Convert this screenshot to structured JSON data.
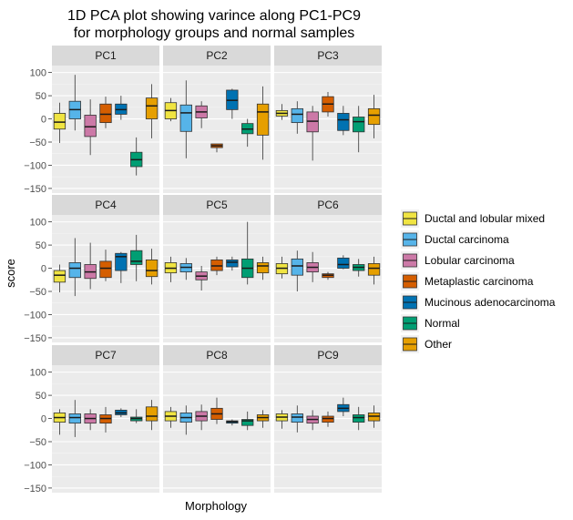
{
  "chart_data": {
    "type": "box",
    "title_lines": [
      "1D PCA plot showing varince along PC1-PC9",
      "for morphology groups and normal samples"
    ],
    "xlabel": "Morphology",
    "ylabel": "score",
    "ylim": [
      -160,
      115
    ],
    "yticks": [
      -150,
      -100,
      -50,
      0,
      50,
      100
    ],
    "grid": true,
    "legend_position": "right",
    "groups": [
      {
        "name": "Ductal and lobular mixed",
        "color": "#F0E442"
      },
      {
        "name": "Ductal carcinoma",
        "color": "#56B4E9"
      },
      {
        "name": "Lobular carcinoma",
        "color": "#CC79A7"
      },
      {
        "name": "Metaplastic carcinoma",
        "color": "#D55E00"
      },
      {
        "name": "Mucinous adenocarcinoma",
        "color": "#0072B2"
      },
      {
        "name": "Normal",
        "color": "#009E73"
      },
      {
        "name": "Other",
        "color": "#E69F00"
      }
    ],
    "panels": [
      {
        "label": "PC1",
        "boxes": [
          {
            "min": -52,
            "q1": -22,
            "median": -7,
            "q3": 12,
            "max": 35
          },
          {
            "min": -25,
            "q1": 0,
            "median": 20,
            "q3": 38,
            "max": 95
          },
          {
            "min": -78,
            "q1": -38,
            "median": -17,
            "q3": 8,
            "max": 42
          },
          {
            "min": -20,
            "q1": -8,
            "median": 10,
            "q3": 32,
            "max": 48
          },
          {
            "min": -2,
            "q1": 10,
            "median": 20,
            "q3": 32,
            "max": 50
          },
          {
            "min": -122,
            "q1": -103,
            "median": -88,
            "q3": -72,
            "max": -40
          },
          {
            "min": -42,
            "q1": 0,
            "median": 28,
            "q3": 45,
            "max": 75
          }
        ]
      },
      {
        "label": "PC2",
        "boxes": [
          {
            "min": -5,
            "q1": 0,
            "median": 18,
            "q3": 35,
            "max": 45
          },
          {
            "min": -85,
            "q1": -27,
            "median": 13,
            "q3": 30,
            "max": 83
          },
          {
            "min": -20,
            "q1": 2,
            "median": 15,
            "q3": 28,
            "max": 38
          },
          {
            "min": -72,
            "q1": -62,
            "median": -58,
            "q3": -54,
            "max": -54
          },
          {
            "min": 0,
            "q1": 20,
            "median": 40,
            "q3": 62,
            "max": 65
          },
          {
            "min": -60,
            "q1": -32,
            "median": -22,
            "q3": -10,
            "max": 0
          },
          {
            "min": -88,
            "q1": -35,
            "median": 15,
            "q3": 32,
            "max": 70
          }
        ]
      },
      {
        "label": "PC3",
        "boxes": [
          {
            "min": -2,
            "q1": 6,
            "median": 12,
            "q3": 18,
            "max": 32
          },
          {
            "min": -32,
            "q1": -8,
            "median": 10,
            "q3": 22,
            "max": 38
          },
          {
            "min": -90,
            "q1": -28,
            "median": -5,
            "q3": 15,
            "max": 28
          },
          {
            "min": 5,
            "q1": 15,
            "median": 32,
            "q3": 48,
            "max": 58
          },
          {
            "min": -35,
            "q1": -25,
            "median": -2,
            "q3": 12,
            "max": 28
          },
          {
            "min": -72,
            "q1": -28,
            "median": -6,
            "q3": 4,
            "max": 28
          },
          {
            "min": -42,
            "q1": -12,
            "median": 8,
            "q3": 22,
            "max": 52
          }
        ]
      },
      {
        "label": "PC4",
        "boxes": [
          {
            "min": -52,
            "q1": -30,
            "median": -15,
            "q3": -5,
            "max": 8
          },
          {
            "min": -60,
            "q1": -20,
            "median": 0,
            "q3": 12,
            "max": 65
          },
          {
            "min": -45,
            "q1": -22,
            "median": -8,
            "q3": 8,
            "max": 55
          },
          {
            "min": -28,
            "q1": -20,
            "median": 0,
            "q3": 15,
            "max": 40
          },
          {
            "min": -32,
            "q1": -5,
            "median": 25,
            "q3": 32,
            "max": 35
          },
          {
            "min": -28,
            "q1": 8,
            "median": 15,
            "q3": 38,
            "max": 72
          },
          {
            "min": -35,
            "q1": -18,
            "median": -5,
            "q3": 18,
            "max": 42
          }
        ]
      },
      {
        "label": "PC5",
        "boxes": [
          {
            "min": -30,
            "q1": -10,
            "median": 0,
            "q3": 12,
            "max": 25
          },
          {
            "min": -25,
            "q1": -8,
            "median": 2,
            "q3": 10,
            "max": 22
          },
          {
            "min": -48,
            "q1": -25,
            "median": -17,
            "q3": -8,
            "max": 5
          },
          {
            "min": -15,
            "q1": -5,
            "median": 5,
            "q3": 18,
            "max": 25
          },
          {
            "min": -5,
            "q1": 3,
            "median": 13,
            "q3": 18,
            "max": 25
          },
          {
            "min": -35,
            "q1": -20,
            "median": 0,
            "q3": 20,
            "max": 100
          },
          {
            "min": -25,
            "q1": -10,
            "median": 5,
            "q3": 12,
            "max": 25
          }
        ]
      },
      {
        "label": "PC6",
        "boxes": [
          {
            "min": -22,
            "q1": -12,
            "median": 0,
            "q3": 10,
            "max": 25
          },
          {
            "min": -50,
            "q1": -15,
            "median": 5,
            "q3": 20,
            "max": 38
          },
          {
            "min": -30,
            "q1": -8,
            "median": 2,
            "q3": 12,
            "max": 35
          },
          {
            "min": -25,
            "q1": -20,
            "median": -15,
            "q3": -12,
            "max": -8
          },
          {
            "min": -2,
            "q1": 0,
            "median": 8,
            "q3": 22,
            "max": 28
          },
          {
            "min": -18,
            "q1": -5,
            "median": 2,
            "q3": 8,
            "max": 20
          },
          {
            "min": -35,
            "q1": -15,
            "median": 0,
            "q3": 10,
            "max": 25
          }
        ]
      },
      {
        "label": "PC7",
        "boxes": [
          {
            "min": -35,
            "q1": -8,
            "median": 2,
            "q3": 12,
            "max": 20
          },
          {
            "min": -40,
            "q1": -10,
            "median": 2,
            "q3": 10,
            "max": 40
          },
          {
            "min": -25,
            "q1": -10,
            "median": 0,
            "q3": 10,
            "max": 20
          },
          {
            "min": -30,
            "q1": -10,
            "median": 0,
            "q3": 8,
            "max": 25
          },
          {
            "min": 3,
            "q1": 8,
            "median": 12,
            "q3": 18,
            "max": 22
          },
          {
            "min": -10,
            "q1": -5,
            "median": 0,
            "q3": 3,
            "max": 20
          },
          {
            "min": -25,
            "q1": -5,
            "median": 5,
            "q3": 25,
            "max": 40
          }
        ]
      },
      {
        "label": "PC8",
        "boxes": [
          {
            "min": -20,
            "q1": -5,
            "median": 5,
            "q3": 15,
            "max": 25
          },
          {
            "min": -35,
            "q1": -8,
            "median": 2,
            "q3": 12,
            "max": 28
          },
          {
            "min": -25,
            "q1": -5,
            "median": 5,
            "q3": 15,
            "max": 30
          },
          {
            "min": -12,
            "q1": -2,
            "median": 10,
            "q3": 22,
            "max": 45
          },
          {
            "min": -15,
            "q1": -10,
            "median": -7,
            "q3": -5,
            "max": -2
          },
          {
            "min": -25,
            "q1": -15,
            "median": -5,
            "q3": -2,
            "max": 15
          },
          {
            "min": -20,
            "q1": -5,
            "median": 2,
            "q3": 8,
            "max": 18
          }
        ]
      },
      {
        "label": "PC9",
        "boxes": [
          {
            "min": -22,
            "q1": -5,
            "median": 3,
            "q3": 10,
            "max": 18
          },
          {
            "min": -30,
            "q1": -8,
            "median": 3,
            "q3": 10,
            "max": 28
          },
          {
            "min": -25,
            "q1": -10,
            "median": -2,
            "q3": 5,
            "max": 18
          },
          {
            "min": -18,
            "q1": -8,
            "median": 0,
            "q3": 5,
            "max": 15
          },
          {
            "min": 5,
            "q1": 15,
            "median": 22,
            "q3": 30,
            "max": 45
          },
          {
            "min": -25,
            "q1": -8,
            "median": 2,
            "q3": 8,
            "max": 25
          },
          {
            "min": -20,
            "q1": -5,
            "median": 5,
            "q3": 12,
            "max": 28
          }
        ]
      }
    ]
  }
}
